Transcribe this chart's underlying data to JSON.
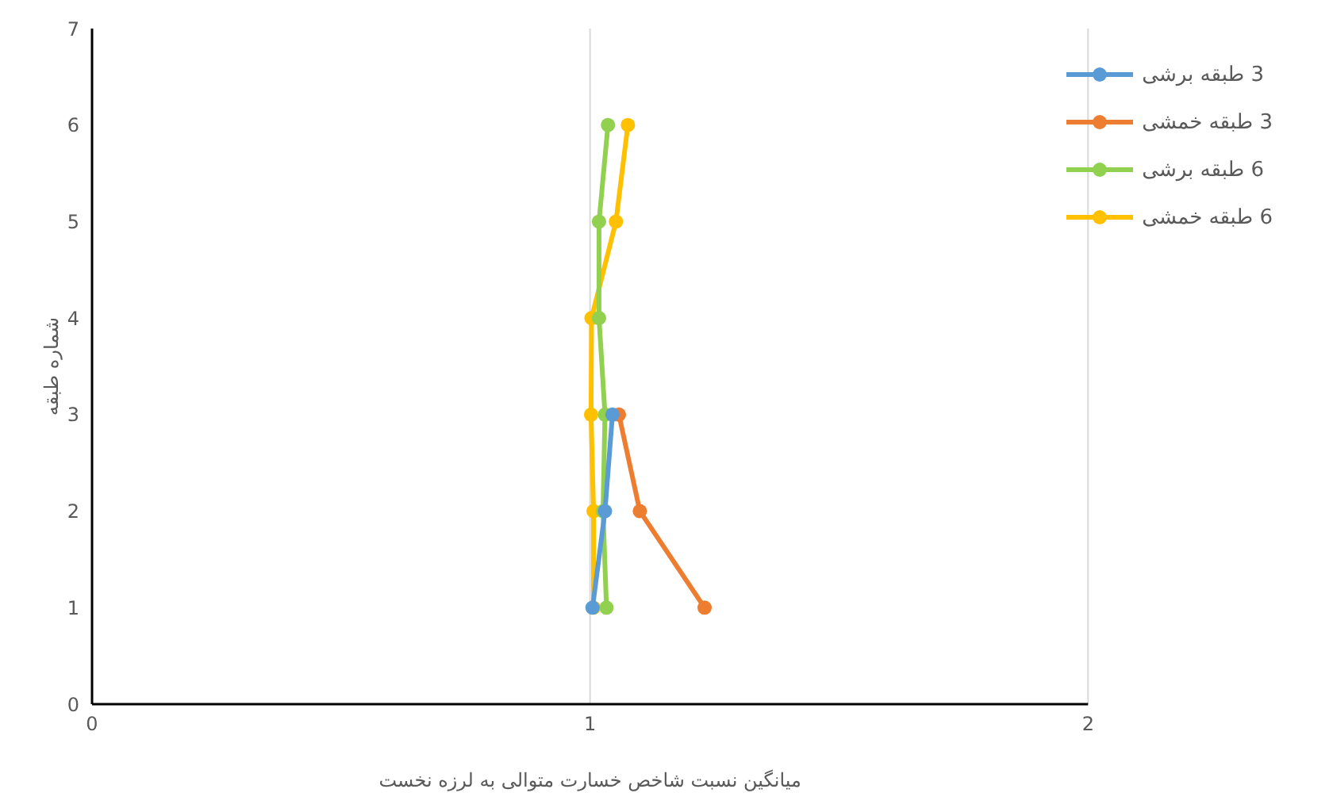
{
  "chart_data": {
    "type": "line",
    "xlabel": "میانگین نسبت شاخص خسارت متوالی به لرزه نخست",
    "ylabel": "شماره طبقه",
    "xlim": [
      0,
      2
    ],
    "xticks": [
      0,
      1,
      2
    ],
    "ylim": [
      0,
      7
    ],
    "yticks": [
      0,
      1,
      2,
      3,
      4,
      5,
      6,
      7
    ],
    "grid": "x",
    "legend": "top right",
    "marker": "circle",
    "line_style": "solid",
    "series": [
      {
        "name": "3 طبقه برشی",
        "color": "#5b9bd5",
        "x": [
          1.005,
          1.03,
          1.045
        ],
        "values": [
          1,
          2,
          3
        ]
      },
      {
        "name": "3 طبقه خمشی",
        "color": "#ed7d31",
        "x": [
          1.23,
          1.1,
          1.058
        ],
        "values": [
          1,
          2,
          3
        ]
      },
      {
        "name": "6 طبقه برشی",
        "color": "#92d050",
        "x": [
          1.033,
          1.026,
          1.03,
          1.018,
          1.018,
          1.036
        ],
        "values": [
          1,
          2,
          3,
          4,
          5,
          6
        ]
      },
      {
        "name": "6 طبقه خمشی",
        "color": "#ffc000",
        "x": [
          1.007,
          1.007,
          1.002,
          1.003,
          1.052,
          1.076
        ],
        "values": [
          1,
          2,
          3,
          4,
          5,
          6
        ]
      }
    ]
  }
}
